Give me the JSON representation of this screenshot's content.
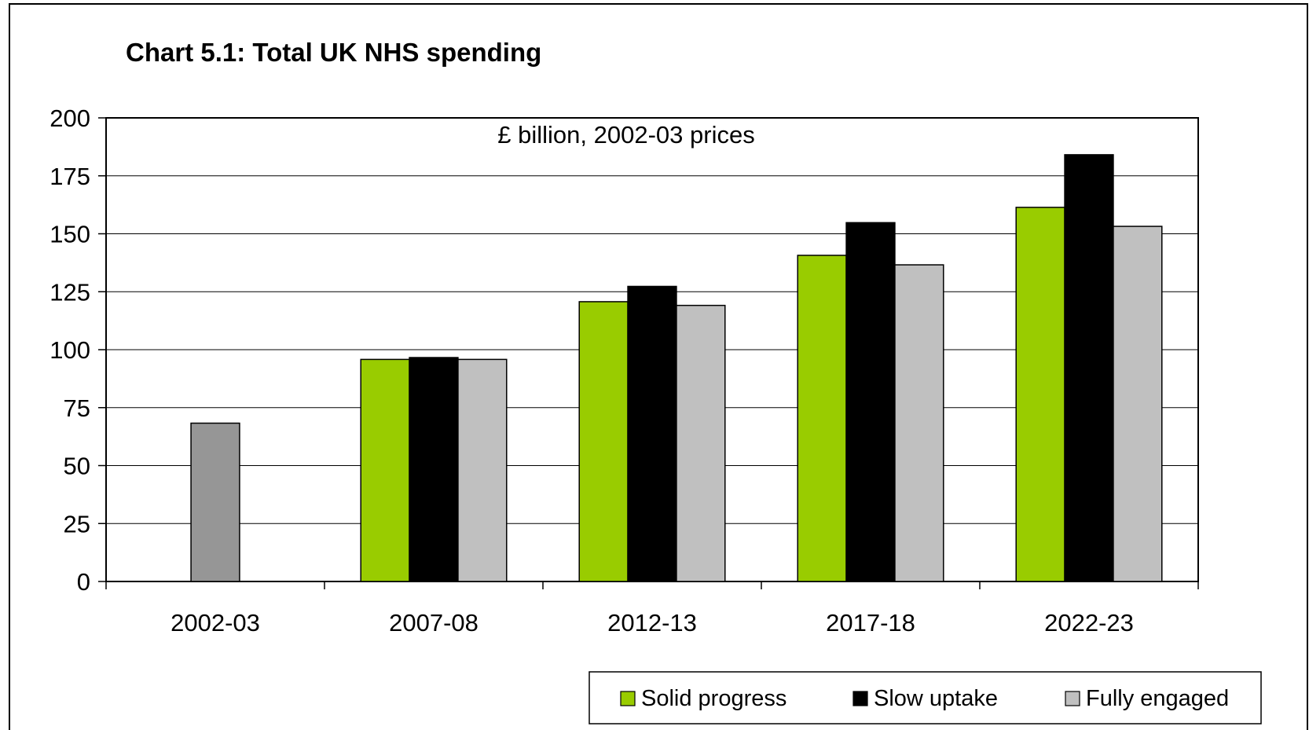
{
  "chart_data": {
    "type": "bar",
    "title": "Chart 5.1: Total UK NHS spending",
    "subtitle": "£ billion, 2002-03 prices",
    "xlabel": "",
    "ylabel": "",
    "categories": [
      "2002-03",
      "2007-08",
      "2012-13",
      "2017-18",
      "2022-23"
    ],
    "ylim": [
      0,
      200
    ],
    "yticks": [
      0,
      25,
      50,
      75,
      100,
      125,
      150,
      175,
      200
    ],
    "grid": true,
    "legend_position": "bottom-right",
    "actual": {
      "category": "2002-03",
      "value": 68.3,
      "color": "#969696"
    },
    "series": [
      {
        "name": "Solid progress",
        "color": "#99cc00",
        "values": [
          null,
          95.8,
          120.7,
          140.7,
          161.4
        ]
      },
      {
        "name": "Slow uptake",
        "color": "#000000",
        "values": [
          null,
          96.6,
          127.3,
          154.8,
          184.1
        ]
      },
      {
        "name": "Fully engaged",
        "color": "#c0c0c0",
        "values": [
          null,
          95.8,
          119.1,
          136.6,
          153.2
        ]
      }
    ]
  }
}
